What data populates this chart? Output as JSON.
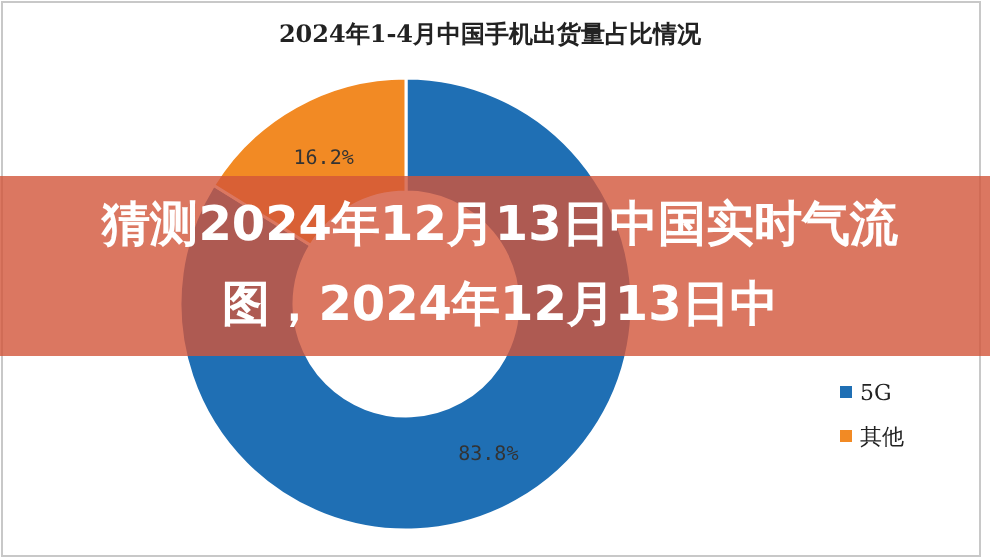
{
  "chart_data": {
    "type": "donut",
    "title": "2024年1-4月中国手机出货量占比情况",
    "categories": [
      "5G",
      "其他"
    ],
    "values": [
      83.8,
      16.2
    ],
    "colors": [
      "#1f6fb4",
      "#f28a24"
    ],
    "value_labels": [
      "83.8%",
      "16.2%"
    ],
    "legend": "right",
    "annotations": [
      "猜测2024年12月13日中国实时气流图，2024年12月13日中"
    ]
  }
}
